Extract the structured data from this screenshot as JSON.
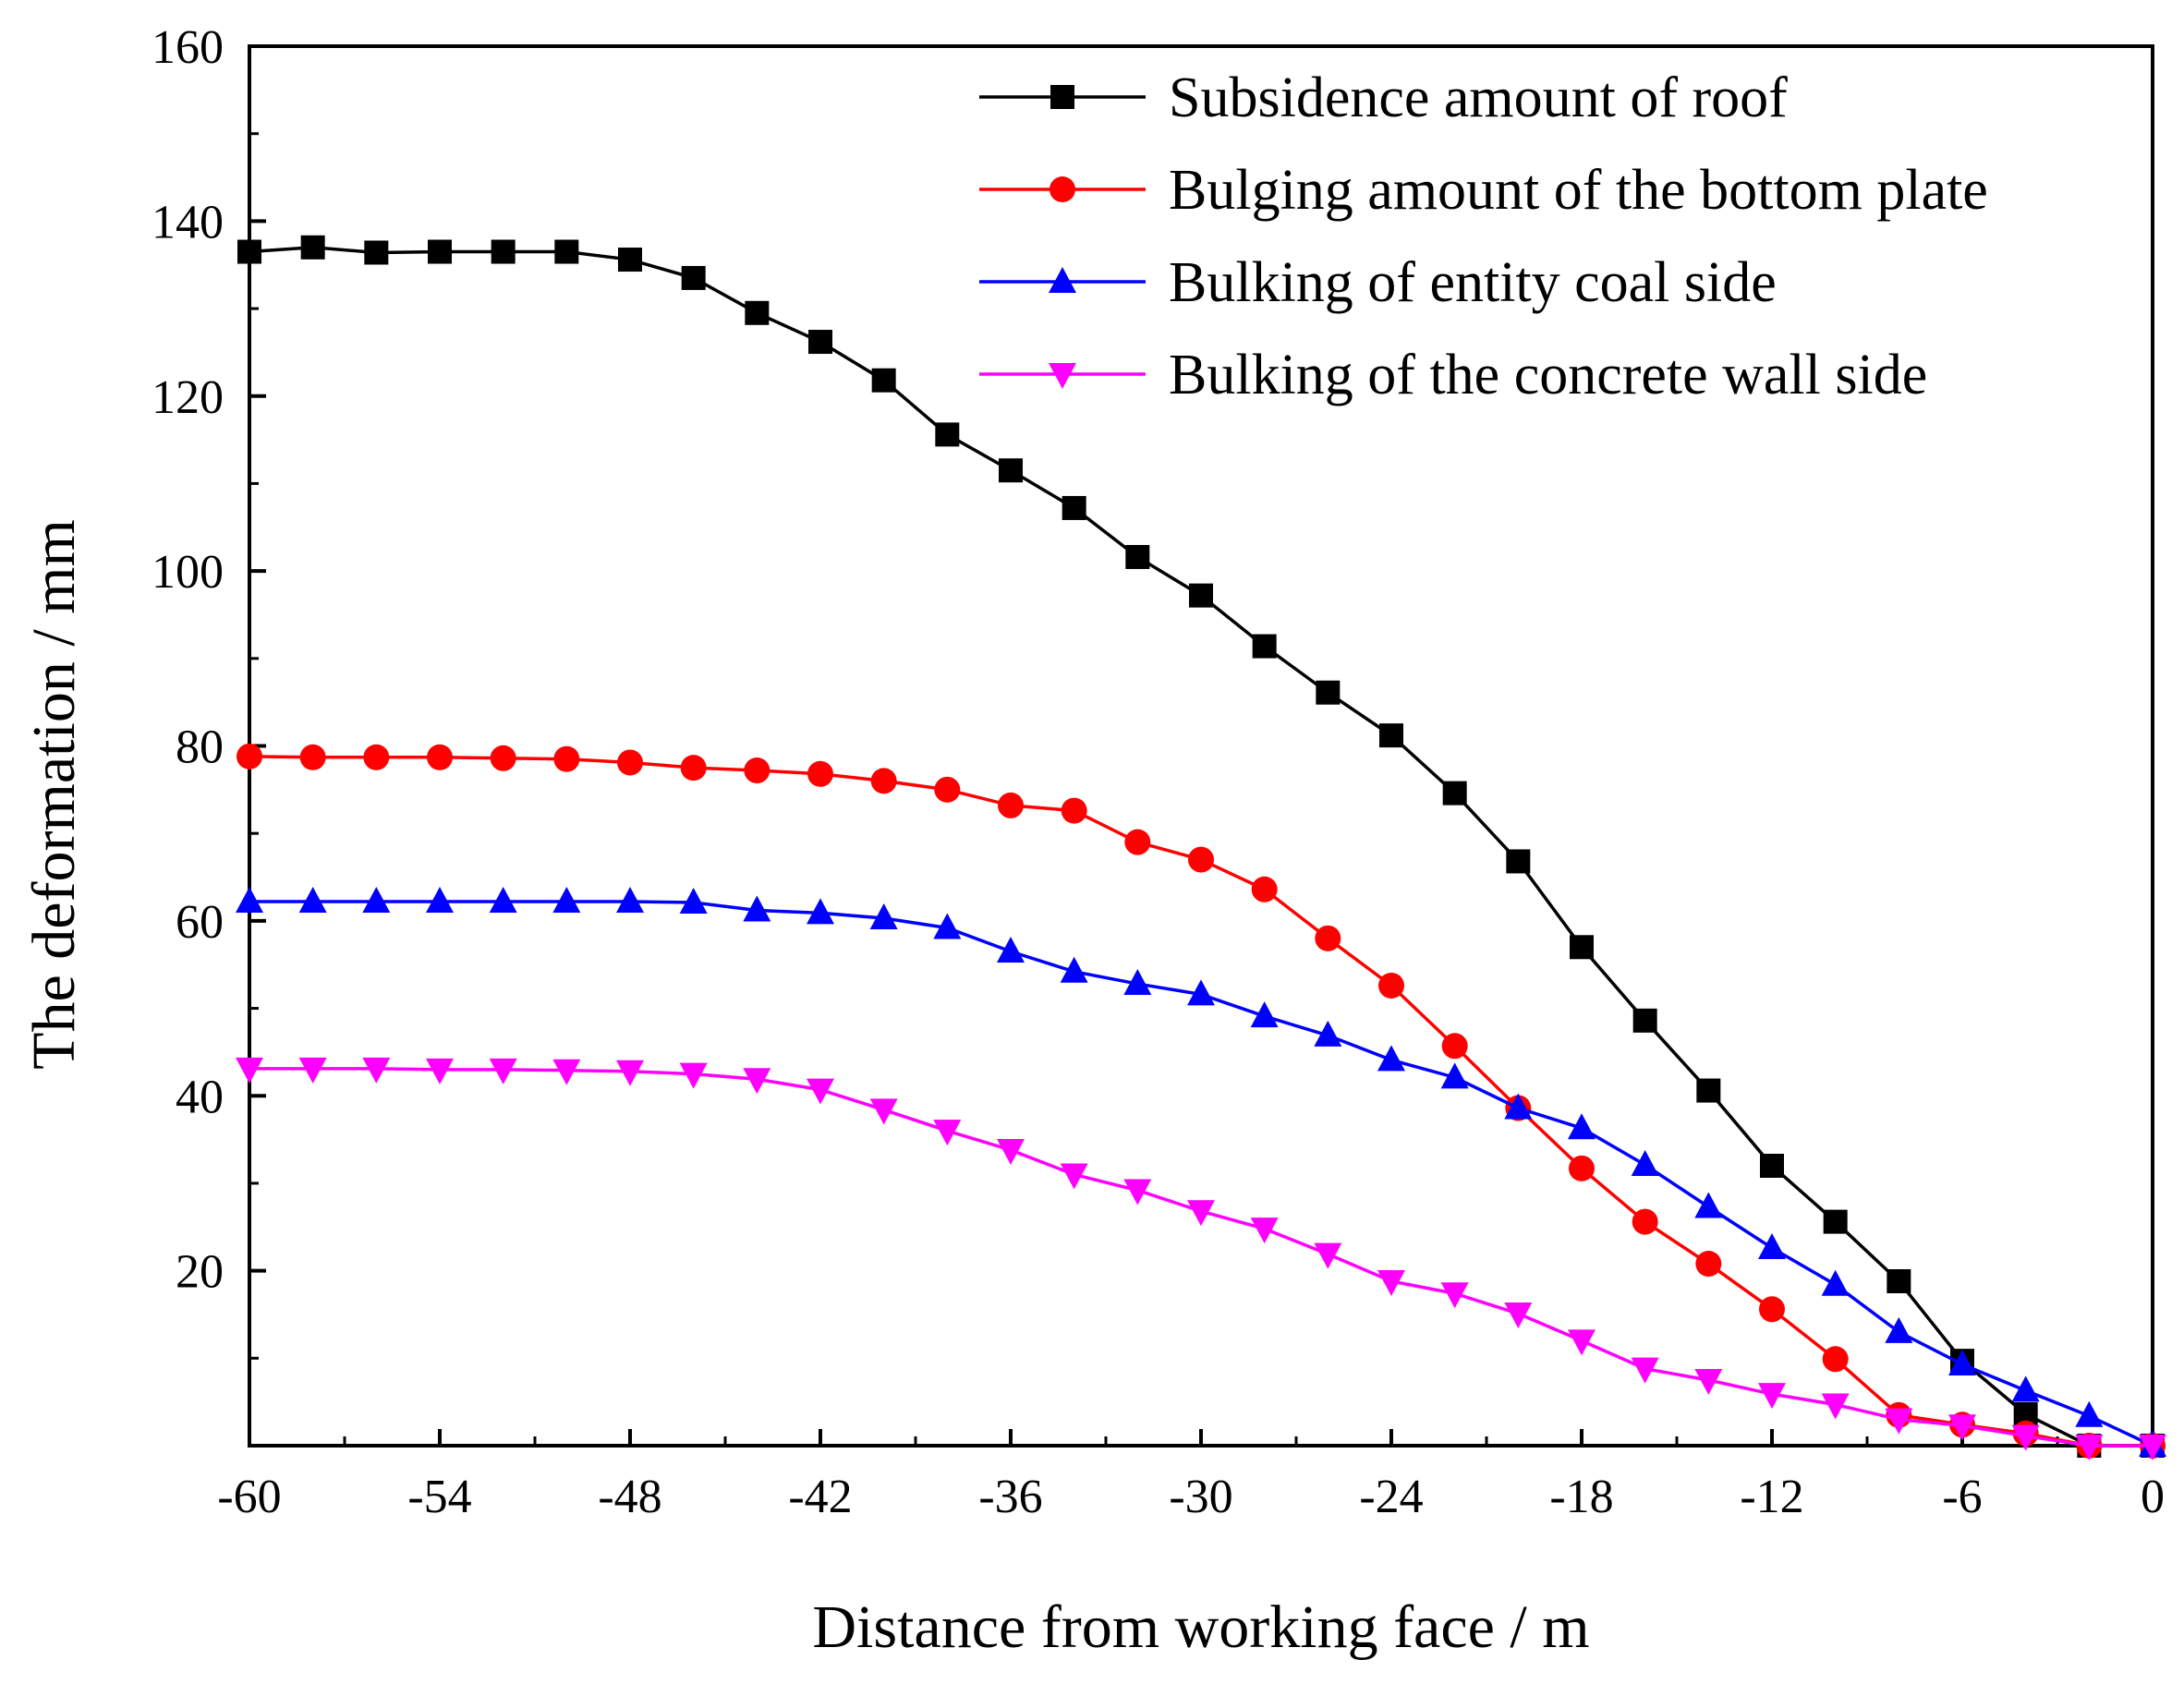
{
  "chart_data": {
    "type": "line",
    "title": "",
    "xlabel": "Distance from working face / m",
    "ylabel": "The deformation / mm",
    "xlim": [
      -60,
      0
    ],
    "ylim": [
      0,
      160
    ],
    "x_ticks": [
      -60,
      -54,
      -48,
      -42,
      -36,
      -30,
      -24,
      -18,
      -12,
      -6,
      0
    ],
    "x_tick_labels": [
      "-60",
      "-54",
      "-48",
      "-42",
      "-36",
      "-30",
      "-24",
      "-18",
      "-12",
      "-6",
      "0"
    ],
    "y_ticks": [
      20,
      40,
      60,
      80,
      100,
      120,
      140,
      160
    ],
    "y_tick_labels": [
      "20",
      "40",
      "60",
      "80",
      "100",
      "120",
      "140",
      "160"
    ],
    "grid": false,
    "legend_position": "top-right",
    "x": [
      -60,
      -58,
      -56,
      -54,
      -52,
      -50,
      -48,
      -46,
      -44,
      -42,
      -40,
      -38,
      -36,
      -34,
      -32,
      -30,
      -28,
      -26,
      -24,
      -22,
      -20,
      -18,
      -16,
      -14,
      -12,
      -10,
      -8,
      -6,
      -4,
      -2,
      0
    ],
    "series": [
      {
        "name": "Subsidence amount of roof",
        "color": "#000000",
        "marker": "square",
        "values": [
          136.5,
          137.0,
          136.4,
          136.5,
          136.5,
          136.5,
          135.6,
          133.5,
          129.5,
          126.2,
          121.8,
          115.6,
          111.5,
          107.2,
          101.6,
          97.2,
          91.4,
          86.1,
          81.2,
          74.6,
          66.8,
          57.0,
          48.6,
          40.6,
          32.0,
          25.6,
          18.8,
          9.7,
          3.6,
          0.0,
          0.0
        ]
      },
      {
        "name": "Bulging amount of the bottom plate",
        "color": "#ff0000",
        "marker": "circle",
        "values": [
          78.8,
          78.7,
          78.7,
          78.7,
          78.6,
          78.5,
          78.1,
          77.5,
          77.2,
          76.8,
          76.0,
          75.0,
          73.2,
          72.6,
          69.0,
          67.0,
          63.6,
          58.0,
          52.6,
          45.7,
          38.6,
          31.7,
          25.6,
          20.8,
          15.6,
          9.9,
          3.5,
          2.4,
          1.4,
          0.0,
          0.0
        ]
      },
      {
        "name": "Bulking of entity coal side",
        "color": "#0000ff",
        "marker": "triangle-up",
        "values": [
          62.2,
          62.2,
          62.2,
          62.2,
          62.2,
          62.2,
          62.2,
          62.1,
          61.2,
          60.9,
          60.3,
          59.2,
          56.5,
          54.2,
          52.8,
          51.6,
          49.1,
          46.9,
          44.1,
          42.1,
          38.6,
          36.3,
          32.1,
          27.3,
          22.6,
          18.4,
          13.0,
          9.3,
          6.3,
          3.4,
          0.0
        ]
      },
      {
        "name": "Bulking of the concrete wall side",
        "color": "#ff00ff",
        "marker": "triangle-down",
        "values": [
          43.1,
          43.1,
          43.1,
          43.0,
          43.0,
          42.9,
          42.8,
          42.5,
          41.9,
          40.7,
          38.4,
          36.0,
          33.8,
          31.0,
          29.2,
          26.8,
          24.8,
          21.9,
          18.8,
          17.4,
          15.1,
          12.0,
          8.8,
          7.5,
          5.9,
          4.7,
          3.0,
          2.3,
          1.1,
          0.0,
          0.0
        ]
      }
    ]
  }
}
